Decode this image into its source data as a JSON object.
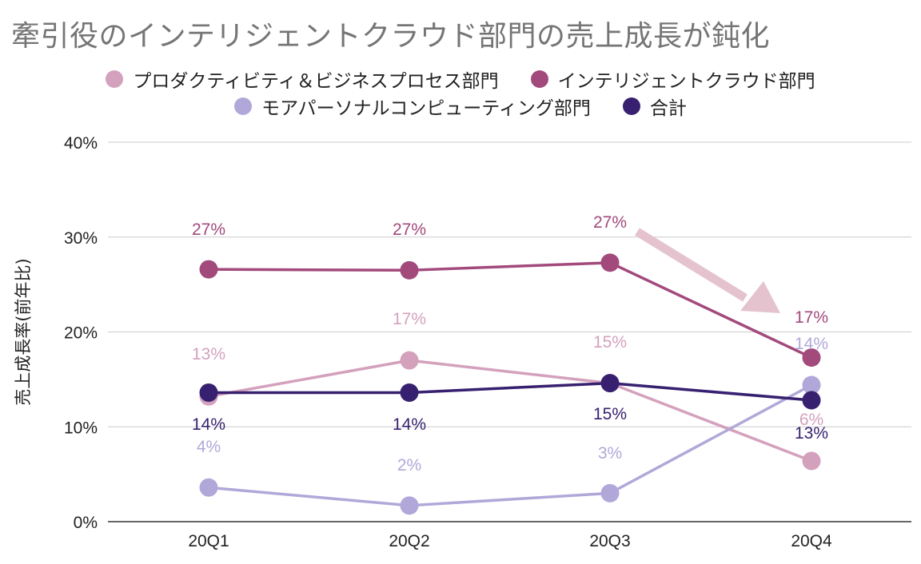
{
  "title": "牽引役のインテリジェントクラウド部門の売上成長が鈍化",
  "legend": [
    {
      "name": "プロダクティビティ＆ビジネスプロセス部門",
      "color": "#d4a1bd"
    },
    {
      "name": "インテリジェントクラウド部門",
      "color": "#a24a7c"
    },
    {
      "name": "モアパーソナルコンピューティング部門",
      "color": "#b1a8d9"
    },
    {
      "name": "合計",
      "color": "#37206f"
    }
  ],
  "chart_data": {
    "type": "line",
    "title": "牽引役のインテリジェントクラウド部門の売上成長が鈍化",
    "xlabel": "",
    "ylabel": "売上成長率(前年比)",
    "categories": [
      "20Q1",
      "20Q2",
      "20Q3",
      "20Q4"
    ],
    "ylim": [
      0,
      40
    ],
    "yticks": [
      "0%",
      "10%",
      "20%",
      "30%",
      "40%"
    ],
    "grid": true,
    "legend_position": "top",
    "series": [
      {
        "name": "プロダクティビティ＆ビジネスプロセス部門",
        "color": "#d4a1bd",
        "values": [
          13.2,
          17.0,
          14.6,
          6.4
        ],
        "labels": [
          "13%",
          "17%",
          "15%",
          "6%"
        ]
      },
      {
        "name": "インテリジェントクラウド部門",
        "color": "#a24a7c",
        "values": [
          26.6,
          26.5,
          27.3,
          17.3
        ],
        "labels": [
          "27%",
          "27%",
          "27%",
          "17%"
        ]
      },
      {
        "name": "モアパーソナルコンピューティング部門",
        "color": "#b1a8d9",
        "values": [
          3.6,
          1.7,
          3.0,
          14.4
        ],
        "labels": [
          "4%",
          "2%",
          "3%",
          "14%"
        ]
      },
      {
        "name": "合計",
        "color": "#37206f",
        "values": [
          13.6,
          13.6,
          14.6,
          12.8
        ],
        "labels": [
          "14%",
          "14%",
          "15%",
          "13%"
        ]
      }
    ],
    "annotations": [
      {
        "type": "arrow",
        "description": "下向きの矢印（20Q3→20Q4 インテリジェントクラウド部門の減速を示す）",
        "color": "#e4c3cf"
      }
    ]
  }
}
